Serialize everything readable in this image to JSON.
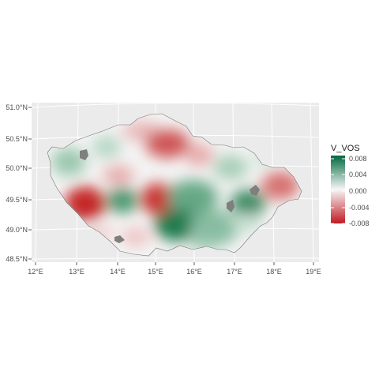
{
  "map": {
    "lat_ticks": [
      "51.0°N",
      "50.5°N",
      "50.0°N",
      "49.5°N",
      "49.0°N",
      "48.5°N"
    ],
    "lon_ticks": [
      "12°E",
      "13°E",
      "14°E",
      "15°E",
      "16°E",
      "17°E",
      "18°E",
      "19°E"
    ],
    "colors": {
      "panel": "#ebebeb",
      "grid": "#ffffff",
      "na": "#7f7f7f"
    }
  },
  "legend": {
    "title": "V_VOS",
    "breaks": [
      "0.008",
      "0.004",
      "0.000",
      "-0.004",
      "-0.008"
    ],
    "colors": {
      "high": "#00693e",
      "mid": "#f7f7f7",
      "low": "#c01a22"
    }
  }
}
